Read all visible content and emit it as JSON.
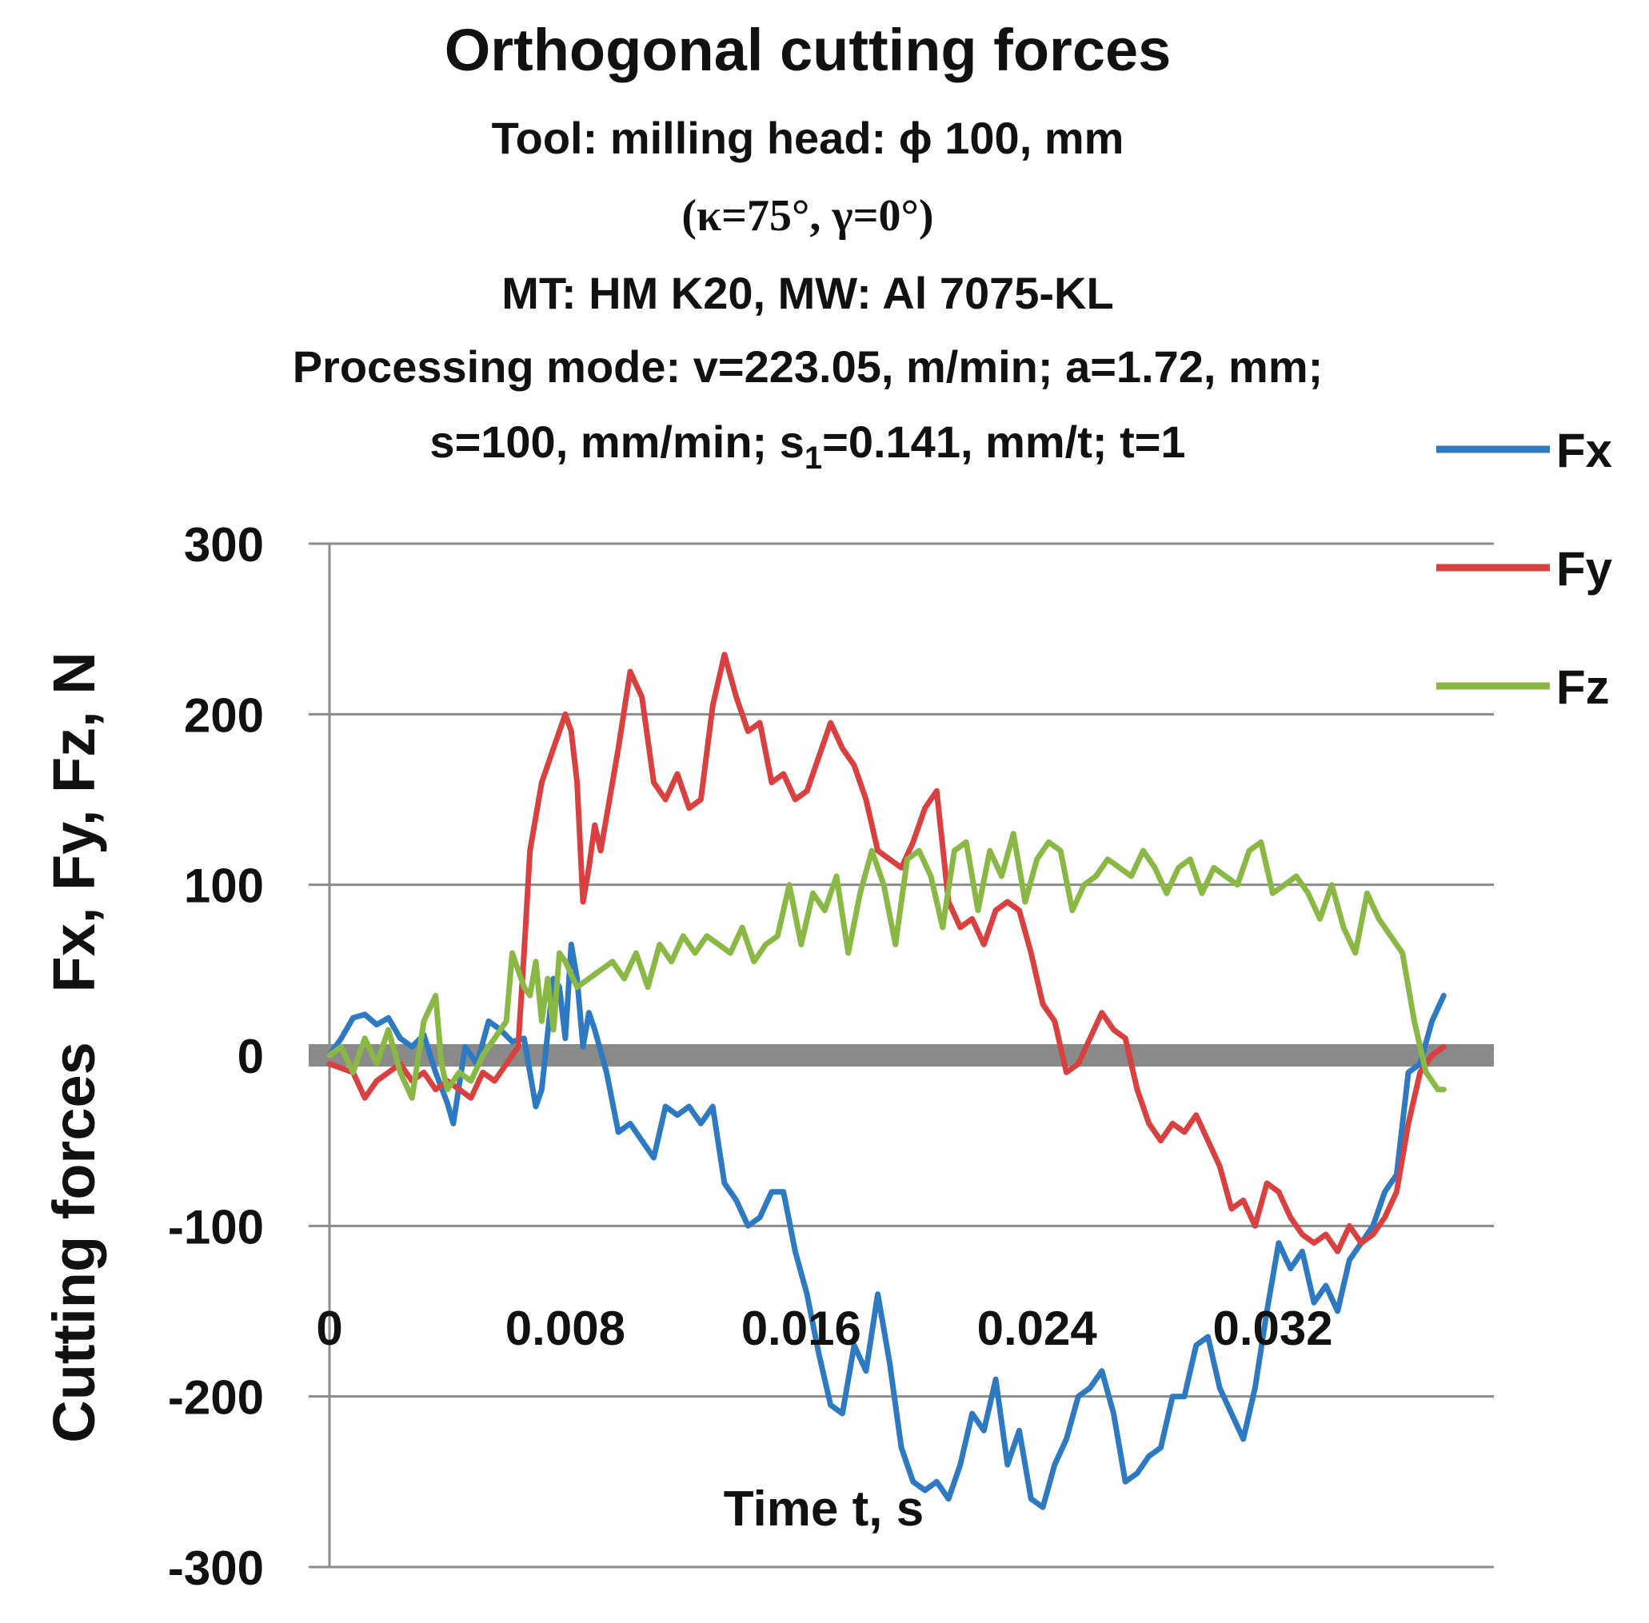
{
  "chart_data": {
    "type": "line",
    "title": "Orthogonal cutting forces",
    "subtitle_lines": [
      "Tool: milling head: ϕ 100, mm",
      "(κ=75°, γ=0°)",
      "MT: HM K20, MW: Al 7075-KL",
      "Processing mode: v=223.05, m/min; a=1.72, mm;"
    ],
    "subtitle_last": {
      "pre": "s=100, mm/min; s",
      "sub": "1",
      "post": "=0.141, mm/t; t=1"
    },
    "xlabel": "Time t, s",
    "ylabel": "Cutting forces   Fx, Fy, Fz, N",
    "xlim": [
      0,
      0.0395
    ],
    "ylim": [
      -300,
      300
    ],
    "x_ticks": [
      "0",
      "0.008",
      "0.016",
      "0.024",
      "0.032"
    ],
    "y_ticks": [
      "300",
      "200",
      "100",
      "0",
      "-100",
      "-200",
      "-300"
    ],
    "grid": true,
    "legend_position": "top-right",
    "series": [
      {
        "name": "Fx",
        "color": "#2e7ac2",
        "points": [
          [
            0,
            0
          ],
          [
            0.0004,
            10
          ],
          [
            0.0008,
            22
          ],
          [
            0.0012,
            24
          ],
          [
            0.0016,
            18
          ],
          [
            0.002,
            22
          ],
          [
            0.0024,
            10
          ],
          [
            0.0028,
            5
          ],
          [
            0.0032,
            12
          ],
          [
            0.0036,
            -10
          ],
          [
            0.004,
            -28
          ],
          [
            0.0042,
            -40
          ],
          [
            0.0046,
            5
          ],
          [
            0.005,
            -5
          ],
          [
            0.0054,
            20
          ],
          [
            0.0058,
            15
          ],
          [
            0.0062,
            8
          ],
          [
            0.0066,
            10
          ],
          [
            0.007,
            -30
          ],
          [
            0.0072,
            -20
          ],
          [
            0.0076,
            45
          ],
          [
            0.0078,
            40
          ],
          [
            0.008,
            10
          ],
          [
            0.0082,
            65
          ],
          [
            0.0084,
            45
          ],
          [
            0.0086,
            5
          ],
          [
            0.0088,
            25
          ],
          [
            0.009,
            15
          ],
          [
            0.0094,
            -10
          ],
          [
            0.0098,
            -45
          ],
          [
            0.0102,
            -40
          ],
          [
            0.0106,
            -50
          ],
          [
            0.011,
            -60
          ],
          [
            0.0114,
            -30
          ],
          [
            0.0118,
            -35
          ],
          [
            0.0122,
            -30
          ],
          [
            0.0126,
            -40
          ],
          [
            0.013,
            -30
          ],
          [
            0.0134,
            -75
          ],
          [
            0.0138,
            -85
          ],
          [
            0.0142,
            -100
          ],
          [
            0.0146,
            -95
          ],
          [
            0.015,
            -80
          ],
          [
            0.0154,
            -80
          ],
          [
            0.0158,
            -115
          ],
          [
            0.0162,
            -140
          ],
          [
            0.0166,
            -175
          ],
          [
            0.017,
            -205
          ],
          [
            0.0174,
            -210
          ],
          [
            0.0178,
            -170
          ],
          [
            0.0182,
            -185
          ],
          [
            0.0186,
            -140
          ],
          [
            0.019,
            -180
          ],
          [
            0.0194,
            -230
          ],
          [
            0.0198,
            -250
          ],
          [
            0.0202,
            -255
          ],
          [
            0.0206,
            -250
          ],
          [
            0.021,
            -260
          ],
          [
            0.0214,
            -240
          ],
          [
            0.0218,
            -210
          ],
          [
            0.0222,
            -220
          ],
          [
            0.0226,
            -190
          ],
          [
            0.023,
            -240
          ],
          [
            0.0234,
            -220
          ],
          [
            0.0238,
            -260
          ],
          [
            0.0242,
            -265
          ],
          [
            0.0246,
            -240
          ],
          [
            0.025,
            -225
          ],
          [
            0.0254,
            -200
          ],
          [
            0.0258,
            -195
          ],
          [
            0.0262,
            -185
          ],
          [
            0.0266,
            -210
          ],
          [
            0.027,
            -250
          ],
          [
            0.0274,
            -245
          ],
          [
            0.0278,
            -235
          ],
          [
            0.0282,
            -230
          ],
          [
            0.0286,
            -200
          ],
          [
            0.029,
            -200
          ],
          [
            0.0294,
            -170
          ],
          [
            0.0298,
            -165
          ],
          [
            0.0302,
            -195
          ],
          [
            0.0306,
            -210
          ],
          [
            0.031,
            -225
          ],
          [
            0.0314,
            -195
          ],
          [
            0.0318,
            -150
          ],
          [
            0.0322,
            -110
          ],
          [
            0.0326,
            -125
          ],
          [
            0.033,
            -115
          ],
          [
            0.0334,
            -145
          ],
          [
            0.0338,
            -135
          ],
          [
            0.0342,
            -150
          ],
          [
            0.0346,
            -120
          ],
          [
            0.035,
            -110
          ],
          [
            0.0354,
            -100
          ],
          [
            0.0358,
            -80
          ],
          [
            0.0362,
            -70
          ],
          [
            0.0366,
            -10
          ],
          [
            0.037,
            -5
          ],
          [
            0.0374,
            20
          ],
          [
            0.0378,
            35
          ]
        ]
      },
      {
        "name": "Fy",
        "color": "#d94040",
        "points": [
          [
            0,
            -5
          ],
          [
            0.0008,
            -10
          ],
          [
            0.0012,
            -25
          ],
          [
            0.0016,
            -15
          ],
          [
            0.002,
            -10
          ],
          [
            0.0024,
            -5
          ],
          [
            0.0028,
            -15
          ],
          [
            0.0032,
            -10
          ],
          [
            0.0036,
            -20
          ],
          [
            0.004,
            -15
          ],
          [
            0.0044,
            -20
          ],
          [
            0.0048,
            -25
          ],
          [
            0.0052,
            -10
          ],
          [
            0.0056,
            -15
          ],
          [
            0.006,
            -5
          ],
          [
            0.0064,
            5
          ],
          [
            0.0066,
            60
          ],
          [
            0.0068,
            120
          ],
          [
            0.0072,
            160
          ],
          [
            0.0076,
            180
          ],
          [
            0.008,
            200
          ],
          [
            0.0082,
            190
          ],
          [
            0.0084,
            160
          ],
          [
            0.0086,
            90
          ],
          [
            0.0088,
            110
          ],
          [
            0.009,
            135
          ],
          [
            0.0092,
            120
          ],
          [
            0.0094,
            140
          ],
          [
            0.0098,
            180
          ],
          [
            0.0102,
            225
          ],
          [
            0.0106,
            210
          ],
          [
            0.011,
            160
          ],
          [
            0.0114,
            150
          ],
          [
            0.0118,
            165
          ],
          [
            0.0122,
            145
          ],
          [
            0.0126,
            150
          ],
          [
            0.013,
            205
          ],
          [
            0.0134,
            235
          ],
          [
            0.0138,
            210
          ],
          [
            0.0142,
            190
          ],
          [
            0.0146,
            195
          ],
          [
            0.015,
            160
          ],
          [
            0.0154,
            165
          ],
          [
            0.0158,
            150
          ],
          [
            0.0162,
            155
          ],
          [
            0.0166,
            175
          ],
          [
            0.017,
            195
          ],
          [
            0.0174,
            180
          ],
          [
            0.0178,
            170
          ],
          [
            0.0182,
            150
          ],
          [
            0.0186,
            120
          ],
          [
            0.019,
            115
          ],
          [
            0.0194,
            110
          ],
          [
            0.0198,
            125
          ],
          [
            0.0202,
            145
          ],
          [
            0.0206,
            155
          ],
          [
            0.021,
            90
          ],
          [
            0.0214,
            75
          ],
          [
            0.0218,
            80
          ],
          [
            0.0222,
            65
          ],
          [
            0.0226,
            85
          ],
          [
            0.023,
            90
          ],
          [
            0.0234,
            85
          ],
          [
            0.0238,
            60
          ],
          [
            0.0242,
            30
          ],
          [
            0.0246,
            20
          ],
          [
            0.025,
            -10
          ],
          [
            0.0254,
            -5
          ],
          [
            0.0258,
            10
          ],
          [
            0.0262,
            25
          ],
          [
            0.0266,
            15
          ],
          [
            0.027,
            10
          ],
          [
            0.0274,
            -20
          ],
          [
            0.0278,
            -40
          ],
          [
            0.0282,
            -50
          ],
          [
            0.0286,
            -40
          ],
          [
            0.029,
            -45
          ],
          [
            0.0294,
            -35
          ],
          [
            0.0298,
            -50
          ],
          [
            0.0302,
            -65
          ],
          [
            0.0306,
            -90
          ],
          [
            0.031,
            -85
          ],
          [
            0.0314,
            -100
          ],
          [
            0.0318,
            -75
          ],
          [
            0.0322,
            -80
          ],
          [
            0.0326,
            -95
          ],
          [
            0.033,
            -105
          ],
          [
            0.0334,
            -110
          ],
          [
            0.0338,
            -105
          ],
          [
            0.0342,
            -115
          ],
          [
            0.0346,
            -100
          ],
          [
            0.035,
            -110
          ],
          [
            0.0354,
            -105
          ],
          [
            0.0358,
            -95
          ],
          [
            0.0362,
            -80
          ],
          [
            0.0366,
            -40
          ],
          [
            0.037,
            -10
          ],
          [
            0.0374,
            0
          ],
          [
            0.0378,
            5
          ]
        ]
      },
      {
        "name": "Fz",
        "color": "#8ab844",
        "points": [
          [
            0,
            0
          ],
          [
            0.0004,
            5
          ],
          [
            0.0008,
            -10
          ],
          [
            0.0012,
            10
          ],
          [
            0.0016,
            -5
          ],
          [
            0.002,
            15
          ],
          [
            0.0024,
            -10
          ],
          [
            0.0028,
            -25
          ],
          [
            0.0032,
            20
          ],
          [
            0.0036,
            35
          ],
          [
            0.0038,
            -5
          ],
          [
            0.004,
            -20
          ],
          [
            0.0044,
            -10
          ],
          [
            0.0048,
            -15
          ],
          [
            0.0052,
            0
          ],
          [
            0.0056,
            10
          ],
          [
            0.006,
            20
          ],
          [
            0.0062,
            60
          ],
          [
            0.0066,
            40
          ],
          [
            0.0068,
            35
          ],
          [
            0.007,
            55
          ],
          [
            0.0072,
            20
          ],
          [
            0.0074,
            45
          ],
          [
            0.0076,
            15
          ],
          [
            0.0078,
            60
          ],
          [
            0.008,
            55
          ],
          [
            0.0084,
            40
          ],
          [
            0.0088,
            45
          ],
          [
            0.0092,
            50
          ],
          [
            0.0096,
            55
          ],
          [
            0.01,
            45
          ],
          [
            0.0104,
            60
          ],
          [
            0.0108,
            40
          ],
          [
            0.0112,
            65
          ],
          [
            0.0116,
            55
          ],
          [
            0.012,
            70
          ],
          [
            0.0124,
            60
          ],
          [
            0.0128,
            70
          ],
          [
            0.0132,
            65
          ],
          [
            0.0136,
            60
          ],
          [
            0.014,
            75
          ],
          [
            0.0144,
            55
          ],
          [
            0.0148,
            65
          ],
          [
            0.0152,
            70
          ],
          [
            0.0156,
            100
          ],
          [
            0.016,
            65
          ],
          [
            0.0164,
            95
          ],
          [
            0.0168,
            85
          ],
          [
            0.0172,
            105
          ],
          [
            0.0176,
            60
          ],
          [
            0.018,
            95
          ],
          [
            0.0184,
            120
          ],
          [
            0.0188,
            100
          ],
          [
            0.0192,
            65
          ],
          [
            0.0196,
            115
          ],
          [
            0.02,
            120
          ],
          [
            0.0204,
            105
          ],
          [
            0.0208,
            75
          ],
          [
            0.0212,
            120
          ],
          [
            0.0216,
            125
          ],
          [
            0.022,
            85
          ],
          [
            0.0224,
            120
          ],
          [
            0.0228,
            105
          ],
          [
            0.0232,
            130
          ],
          [
            0.0236,
            90
          ],
          [
            0.024,
            115
          ],
          [
            0.0244,
            125
          ],
          [
            0.0248,
            120
          ],
          [
            0.0252,
            85
          ],
          [
            0.0256,
            100
          ],
          [
            0.026,
            105
          ],
          [
            0.0264,
            115
          ],
          [
            0.0268,
            110
          ],
          [
            0.0272,
            105
          ],
          [
            0.0276,
            120
          ],
          [
            0.028,
            110
          ],
          [
            0.0284,
            95
          ],
          [
            0.0288,
            110
          ],
          [
            0.0292,
            115
          ],
          [
            0.0296,
            95
          ],
          [
            0.03,
            110
          ],
          [
            0.0304,
            105
          ],
          [
            0.0308,
            100
          ],
          [
            0.0312,
            120
          ],
          [
            0.0316,
            125
          ],
          [
            0.032,
            95
          ],
          [
            0.0324,
            100
          ],
          [
            0.0328,
            105
          ],
          [
            0.0332,
            95
          ],
          [
            0.0336,
            80
          ],
          [
            0.034,
            100
          ],
          [
            0.0344,
            75
          ],
          [
            0.0348,
            60
          ],
          [
            0.0352,
            95
          ],
          [
            0.0356,
            80
          ],
          [
            0.036,
            70
          ],
          [
            0.0364,
            60
          ],
          [
            0.0368,
            20
          ],
          [
            0.0372,
            -10
          ],
          [
            0.0376,
            -20
          ],
          [
            0.0378,
            -20
          ]
        ]
      }
    ]
  }
}
